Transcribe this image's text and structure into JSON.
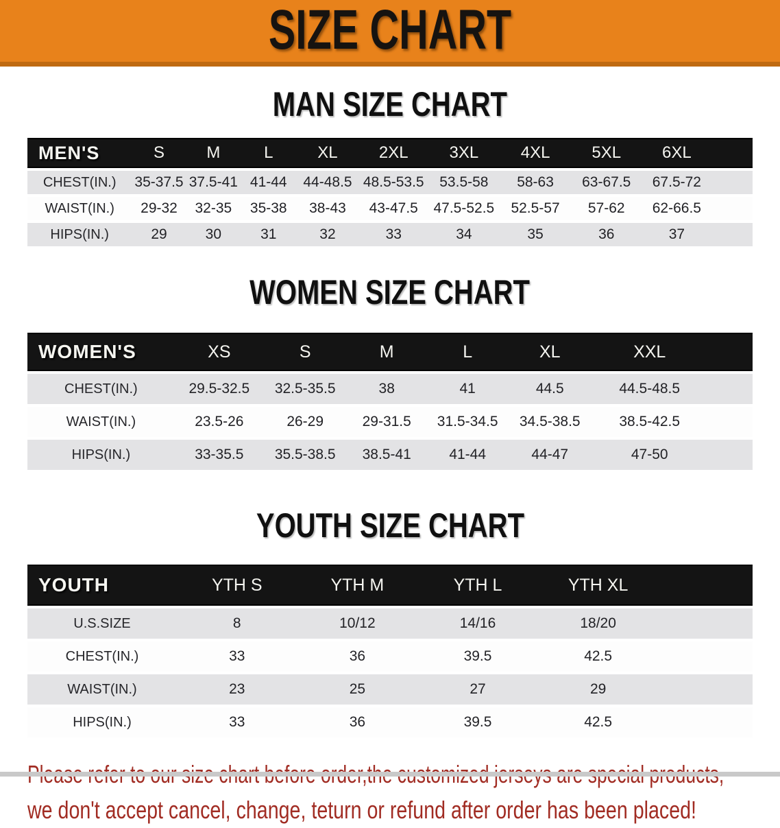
{
  "banner": {
    "title": "SIZE CHART",
    "bg_color": "#E8821B"
  },
  "sections": [
    {
      "title": "MAN SIZE CHART",
      "header_label": "MEN'S",
      "columns": [
        "S",
        "M",
        "L",
        "XL",
        "2XL",
        "3XL",
        "4XL",
        "5XL",
        "6XL"
      ],
      "rows": [
        {
          "label": "CHEST(IN.)",
          "values": [
            "35-37.5",
            "37.5-41",
            "41-44",
            "44-48.5",
            "48.5-53.5",
            "53.5-58",
            "58-63",
            "63-67.5",
            "67.5-72"
          ]
        },
        {
          "label": "WAIST(IN.)",
          "values": [
            "29-32",
            "32-35",
            "35-38",
            "38-43",
            "43-47.5",
            "47.5-52.5",
            "52.5-57",
            "57-62",
            "62-66.5"
          ]
        },
        {
          "label": "HIPS(IN.)",
          "values": [
            "29",
            "30",
            "31",
            "32",
            "33",
            "34",
            "35",
            "36",
            "37"
          ]
        }
      ]
    },
    {
      "title": "WOMEN SIZE CHART",
      "header_label": "WOMEN'S",
      "columns": [
        "XS",
        "S",
        "M",
        "L",
        "XL",
        "XXL"
      ],
      "rows": [
        {
          "label": "CHEST(IN.)",
          "values": [
            "29.5-32.5",
            "32.5-35.5",
            "38",
            "41",
            "44.5",
            "44.5-48.5"
          ]
        },
        {
          "label": "WAIST(IN.)",
          "values": [
            "23.5-26",
            "26-29",
            "29-31.5",
            "31.5-34.5",
            "34.5-38.5",
            "38.5-42.5"
          ]
        },
        {
          "label": "HIPS(IN.)",
          "values": [
            "33-35.5",
            "35.5-38.5",
            "38.5-41",
            "41-44",
            "44-47",
            "47-50"
          ]
        }
      ]
    },
    {
      "title": "YOUTH SIZE CHART",
      "header_label": "YOUTH",
      "columns": [
        "YTH S",
        "YTH M",
        "YTH L",
        "YTH XL"
      ],
      "rows": [
        {
          "label": "U.S.SIZE",
          "values": [
            "8",
            "10/12",
            "14/16",
            "18/20"
          ]
        },
        {
          "label": "CHEST(IN.)",
          "values": [
            "33",
            "36",
            "39.5",
            "42.5"
          ]
        },
        {
          "label": "WAIST(IN.)",
          "values": [
            "23",
            "25",
            "27",
            "29"
          ]
        },
        {
          "label": "HIPS(IN.)",
          "values": [
            "33",
            "36",
            "39.5",
            "42.5"
          ]
        }
      ]
    }
  ],
  "disclaimer": {
    "line1": "Please refer to our size chart before order,the customized jerseys are special products,",
    "line2": "we don't accept cancel, change, teturn or refund after order has been placed!",
    "color": "#A12C23"
  }
}
